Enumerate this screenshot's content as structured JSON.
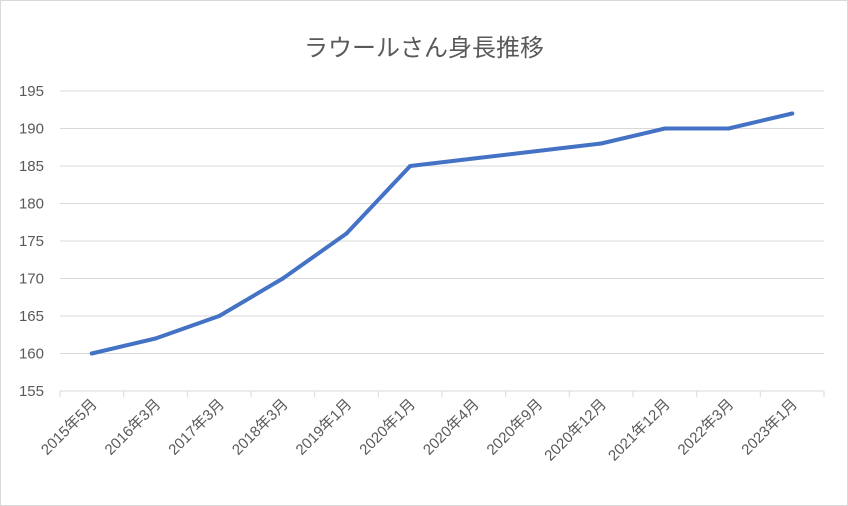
{
  "chart_data": {
    "type": "line",
    "title": "ラウールさん身長推移",
    "xlabel": "",
    "ylabel": "",
    "categories": [
      "2015年5月",
      "2016年3月",
      "2017年3月",
      "2018年3月",
      "2019年1月",
      "2020年1月",
      "2020年4月",
      "2020年9月",
      "2020年12月",
      "2021年12月",
      "2022年3月",
      "2023年1月"
    ],
    "series": [
      {
        "values": [
          160,
          162,
          165,
          170,
          176,
          185,
          186,
          187,
          188,
          190,
          190,
          192
        ],
        "color": "#4472c4"
      }
    ],
    "ylim": [
      155,
      195
    ],
    "yticks": [
      155,
      160,
      165,
      170,
      175,
      180,
      185,
      190,
      195
    ],
    "grid": "horizontal",
    "legend": "none"
  }
}
